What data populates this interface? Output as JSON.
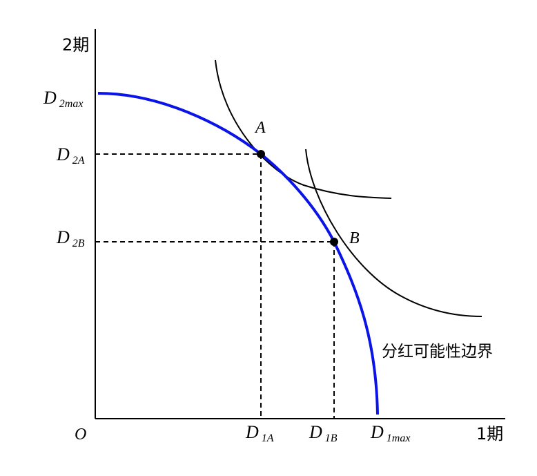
{
  "axes": {
    "y_label": "2期",
    "x_label": "1期",
    "origin_label": "O"
  },
  "labels": {
    "d2max": {
      "main": "D",
      "sub": "2max"
    },
    "d2a": {
      "main": "D",
      "sub": "2A"
    },
    "d2b": {
      "main": "D",
      "sub": "2B"
    },
    "d1a": {
      "main": "D",
      "sub": "1A"
    },
    "d1b": {
      "main": "D",
      "sub": "1B"
    },
    "d1max": {
      "main": "D",
      "sub": "1max"
    }
  },
  "points": {
    "a": "A",
    "b": "B"
  },
  "frontier_label": "分红可能性边界",
  "colors": {
    "frontier": "#0a14e6",
    "curve": "#000000",
    "axis": "#000000"
  }
}
